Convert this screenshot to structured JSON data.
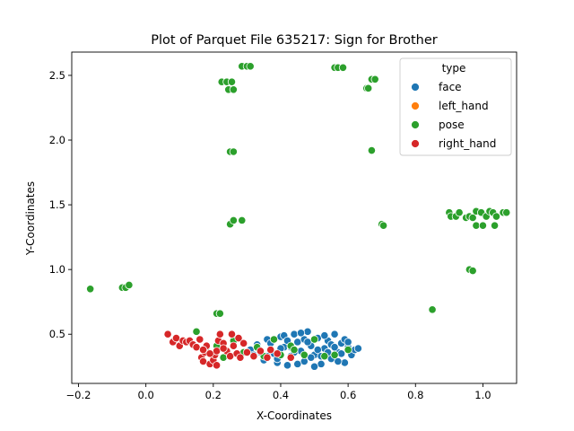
{
  "chart_data": {
    "type": "scatter",
    "title": "Plot of Parquet File 635217: Sign for Brother",
    "xlabel": "X-Coordinates",
    "ylabel": "Y-Coordinates",
    "xlim": [
      -0.22,
      1.1
    ],
    "ylim": [
      0.12,
      2.68
    ],
    "xticks": [
      "−0.2",
      "0.0",
      "0.2",
      "0.4",
      "0.6",
      "0.8",
      "1.0"
    ],
    "xtick_values": [
      -0.2,
      0.0,
      0.2,
      0.4,
      0.6,
      0.8,
      1.0
    ],
    "yticks": [
      "0.5",
      "1.0",
      "1.5",
      "2.0",
      "2.5"
    ],
    "ytick_values": [
      0.5,
      1.0,
      1.5,
      2.0,
      2.5
    ],
    "grid": false,
    "legend": {
      "title": "type",
      "position": "top-right",
      "entries": [
        {
          "name": "face",
          "color": "#1f77b4"
        },
        {
          "name": "left_hand",
          "color": "#ff7f0e"
        },
        {
          "name": "pose",
          "color": "#2ca02c"
        },
        {
          "name": "right_hand",
          "color": "#d62728"
        }
      ]
    },
    "series": [
      {
        "name": "face",
        "color": "#1f77b4",
        "points": [
          [
            0.31,
            0.38
          ],
          [
            0.33,
            0.42
          ],
          [
            0.35,
            0.3
          ],
          [
            0.36,
            0.46
          ],
          [
            0.38,
            0.35
          ],
          [
            0.39,
            0.28
          ],
          [
            0.4,
            0.48
          ],
          [
            0.41,
            0.4
          ],
          [
            0.42,
            0.26
          ],
          [
            0.43,
            0.33
          ],
          [
            0.44,
            0.5
          ],
          [
            0.45,
            0.44
          ],
          [
            0.46,
            0.37
          ],
          [
            0.47,
            0.29
          ],
          [
            0.48,
            0.52
          ],
          [
            0.49,
            0.41
          ],
          [
            0.5,
            0.34
          ],
          [
            0.51,
            0.47
          ],
          [
            0.52,
            0.27
          ],
          [
            0.53,
            0.39
          ],
          [
            0.54,
            0.45
          ],
          [
            0.55,
            0.31
          ],
          [
            0.56,
            0.5
          ],
          [
            0.57,
            0.36
          ],
          [
            0.58,
            0.43
          ],
          [
            0.59,
            0.28
          ],
          [
            0.6,
            0.4
          ],
          [
            0.61,
            0.34
          ],
          [
            0.62,
            0.38
          ],
          [
            0.34,
            0.36
          ],
          [
            0.37,
            0.43
          ],
          [
            0.39,
            0.31
          ],
          [
            0.41,
            0.49
          ],
          [
            0.43,
            0.4
          ],
          [
            0.45,
            0.27
          ],
          [
            0.47,
            0.46
          ],
          [
            0.49,
            0.32
          ],
          [
            0.51,
            0.38
          ],
          [
            0.53,
            0.49
          ],
          [
            0.55,
            0.42
          ],
          [
            0.57,
            0.29
          ],
          [
            0.59,
            0.46
          ],
          [
            0.44,
            0.36
          ],
          [
            0.48,
            0.44
          ],
          [
            0.52,
            0.33
          ],
          [
            0.56,
            0.4
          ],
          [
            0.4,
            0.39
          ],
          [
            0.46,
            0.51
          ],
          [
            0.5,
            0.25
          ],
          [
            0.54,
            0.36
          ],
          [
            0.42,
            0.45
          ],
          [
            0.58,
            0.35
          ],
          [
            0.36,
            0.33
          ],
          [
            0.6,
            0.44
          ],
          [
            0.32,
            0.34
          ],
          [
            0.63,
            0.39
          ]
        ]
      },
      {
        "name": "left_hand",
        "color": "#ff7f0e",
        "points": []
      },
      {
        "name": "pose",
        "color": "#2ca02c",
        "points": [
          [
            -0.165,
            0.85
          ],
          [
            -0.07,
            0.86
          ],
          [
            -0.06,
            0.86
          ],
          [
            -0.05,
            0.88
          ],
          [
            0.21,
            0.66
          ],
          [
            0.22,
            0.66
          ],
          [
            0.225,
            2.45
          ],
          [
            0.24,
            2.45
          ],
          [
            0.245,
            2.39
          ],
          [
            0.26,
            2.39
          ],
          [
            0.255,
            2.45
          ],
          [
            0.25,
            1.91
          ],
          [
            0.26,
            1.91
          ],
          [
            0.25,
            1.35
          ],
          [
            0.26,
            1.38
          ],
          [
            0.285,
            1.38
          ],
          [
            0.285,
            2.57
          ],
          [
            0.3,
            2.57
          ],
          [
            0.31,
            2.57
          ],
          [
            0.56,
            2.56
          ],
          [
            0.57,
            2.56
          ],
          [
            0.585,
            2.56
          ],
          [
            0.655,
            2.4
          ],
          [
            0.66,
            2.4
          ],
          [
            0.67,
            2.47
          ],
          [
            0.68,
            2.47
          ],
          [
            0.67,
            1.92
          ],
          [
            0.7,
            1.35
          ],
          [
            0.705,
            1.34
          ],
          [
            0.85,
            0.69
          ],
          [
            0.9,
            1.44
          ],
          [
            0.905,
            1.41
          ],
          [
            0.92,
            1.41
          ],
          [
            0.93,
            1.44
          ],
          [
            0.95,
            1.4
          ],
          [
            0.96,
            1.41
          ],
          [
            0.97,
            1.4
          ],
          [
            0.98,
            1.45
          ],
          [
            0.98,
            1.34
          ],
          [
            0.995,
            1.44
          ],
          [
            1.0,
            1.34
          ],
          [
            1.01,
            1.41
          ],
          [
            1.02,
            1.45
          ],
          [
            1.03,
            1.44
          ],
          [
            1.035,
            1.34
          ],
          [
            1.04,
            1.41
          ],
          [
            1.06,
            1.44
          ],
          [
            1.07,
            1.44
          ],
          [
            0.96,
            1.0
          ],
          [
            0.97,
            0.99
          ],
          [
            0.15,
            0.52
          ],
          [
            0.18,
            0.4
          ],
          [
            0.21,
            0.41
          ],
          [
            0.23,
            0.32
          ],
          [
            0.26,
            0.45
          ],
          [
            0.29,
            0.36
          ],
          [
            0.33,
            0.4
          ],
          [
            0.38,
            0.46
          ],
          [
            0.4,
            0.34
          ],
          [
            0.43,
            0.41
          ],
          [
            0.47,
            0.34
          ],
          [
            0.5,
            0.46
          ],
          [
            0.53,
            0.33
          ],
          [
            0.56,
            0.34
          ],
          [
            0.6,
            0.38
          ],
          [
            0.35,
            0.33
          ],
          [
            0.44,
            0.38
          ]
        ]
      },
      {
        "name": "right_hand",
        "color": "#d62728",
        "points": [
          [
            0.065,
            0.5
          ],
          [
            0.08,
            0.44
          ],
          [
            0.09,
            0.47
          ],
          [
            0.1,
            0.41
          ],
          [
            0.11,
            0.45
          ],
          [
            0.12,
            0.44
          ],
          [
            0.13,
            0.45
          ],
          [
            0.14,
            0.42
          ],
          [
            0.15,
            0.4
          ],
          [
            0.16,
            0.46
          ],
          [
            0.165,
            0.32
          ],
          [
            0.17,
            0.29
          ],
          [
            0.175,
            0.36
          ],
          [
            0.18,
            0.41
          ],
          [
            0.19,
            0.27
          ],
          [
            0.2,
            0.3
          ],
          [
            0.205,
            0.34
          ],
          [
            0.21,
            0.37
          ],
          [
            0.215,
            0.45
          ],
          [
            0.22,
            0.5
          ],
          [
            0.23,
            0.43
          ],
          [
            0.24,
            0.37
          ],
          [
            0.25,
            0.33
          ],
          [
            0.255,
            0.5
          ],
          [
            0.26,
            0.41
          ],
          [
            0.27,
            0.35
          ],
          [
            0.275,
            0.47
          ],
          [
            0.28,
            0.32
          ],
          [
            0.29,
            0.43
          ],
          [
            0.3,
            0.36
          ],
          [
            0.32,
            0.33
          ],
          [
            0.34,
            0.37
          ],
          [
            0.36,
            0.32
          ],
          [
            0.37,
            0.38
          ],
          [
            0.39,
            0.35
          ],
          [
            0.43,
            0.32
          ],
          [
            0.19,
            0.35
          ],
          [
            0.21,
            0.26
          ],
          [
            0.23,
            0.39
          ],
          [
            0.17,
            0.38
          ]
        ]
      }
    ]
  }
}
